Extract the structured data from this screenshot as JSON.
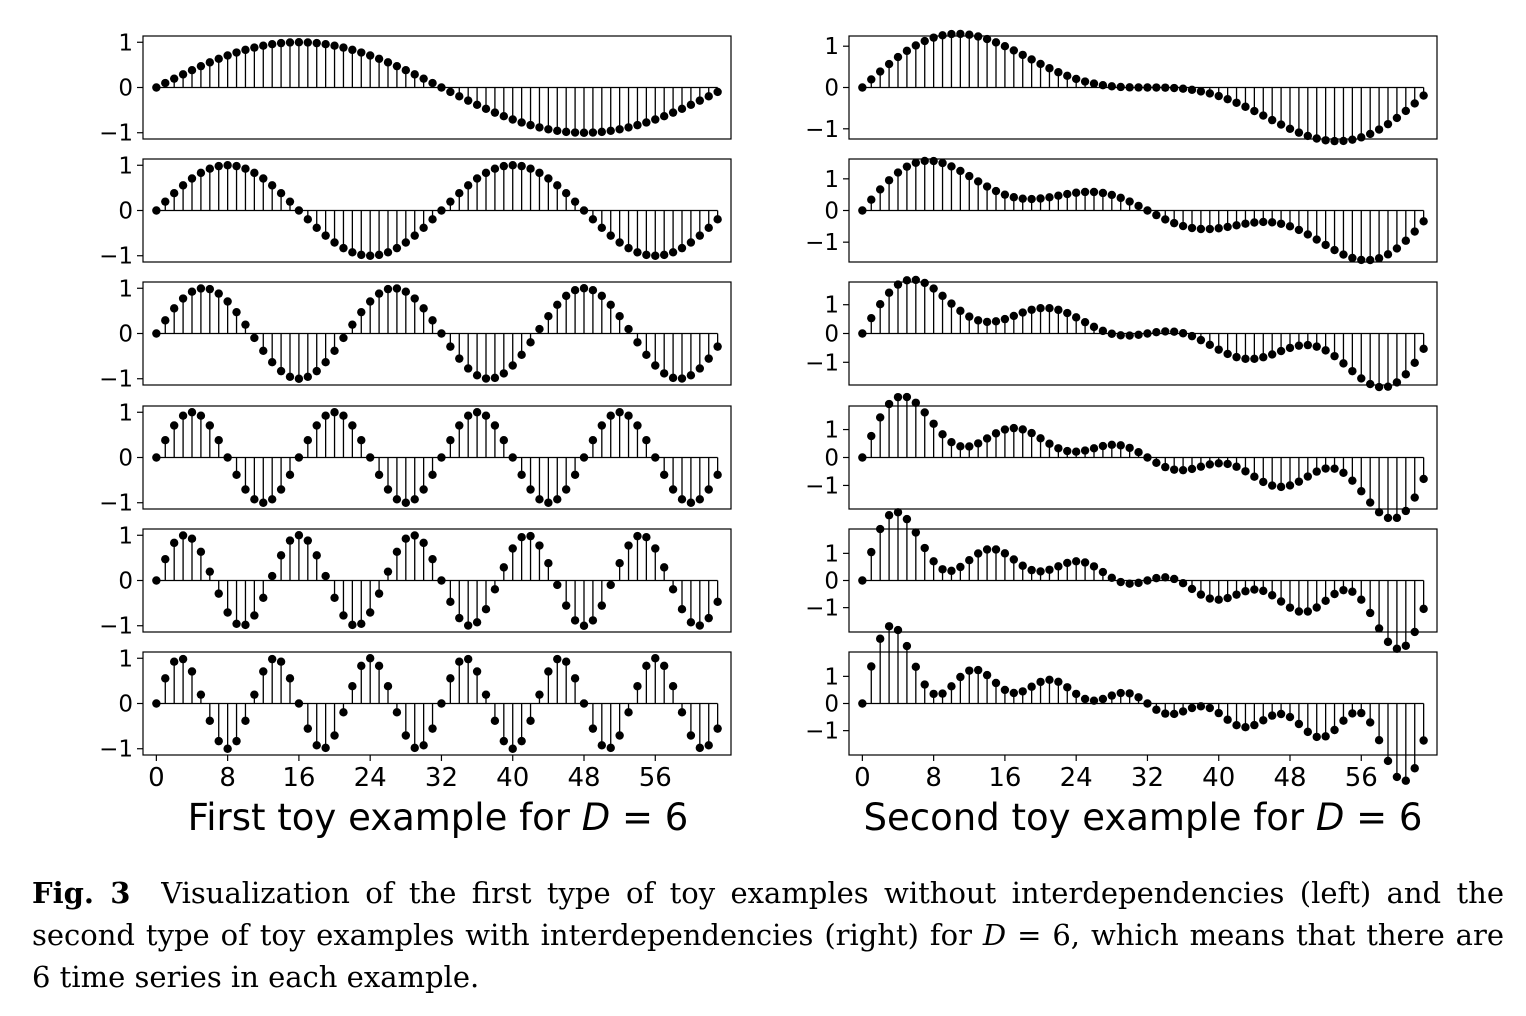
{
  "figure": {
    "caption": {
      "label": "Fig. 3",
      "pre": "Visualization of the first type of toy examples without interdependencies (left) and the second type of toy examples with interdependencies (right) for ",
      "var": "D",
      "post": " = 6, which means that there are 6 time series in each example."
    }
  },
  "chart_data": [
    {
      "type": "stem",
      "title": "First toy example for D = 6",
      "x": "0 to 63",
      "xticks": [
        "0",
        "8",
        "16",
        "24",
        "32",
        "40",
        "48",
        "56"
      ],
      "rows": [
        {
          "series": "sin(2*pi*1*t/64)",
          "ylim": [
            -1.05,
            1.05
          ],
          "yticks": [
            "1",
            "0",
            "−1"
          ],
          "ytick_values": [
            1,
            0,
            -1
          ]
        },
        {
          "series": "sin(2*pi*2*t/64)",
          "ylim": [
            -1.05,
            1.05
          ],
          "yticks": [
            "1",
            "0",
            "−1"
          ],
          "ytick_values": [
            1,
            0,
            -1
          ]
        },
        {
          "series": "sin(2*pi*3*t/64)",
          "ylim": [
            -1.05,
            1.05
          ],
          "yticks": [
            "1",
            "0",
            "−1"
          ],
          "ytick_values": [
            1,
            0,
            -1
          ]
        },
        {
          "series": "sin(2*pi*4*t/64)",
          "ylim": [
            -1.05,
            1.05
          ],
          "yticks": [
            "1",
            "0",
            "−1"
          ],
          "ytick_values": [
            1,
            0,
            -1
          ]
        },
        {
          "series": "sin(2*pi*5*t/64)",
          "ylim": [
            -1.05,
            1.05
          ],
          "yticks": [
            "1",
            "0",
            "−1"
          ],
          "ytick_values": [
            1,
            0,
            -1
          ]
        },
        {
          "series": "sin(2*pi*6*t/64)",
          "ylim": [
            -1.05,
            1.05
          ],
          "yticks": [
            "1",
            "0",
            "−1"
          ],
          "ytick_values": [
            1,
            0,
            -1
          ]
        }
      ]
    },
    {
      "type": "stem",
      "title": "Second toy example for D = 6",
      "x": "0 to 63",
      "xticks": [
        "0",
        "8",
        "16",
        "24",
        "32",
        "40",
        "48",
        "56"
      ],
      "rows": [
        {
          "series": "sum of sines k=1..2",
          "ylim": [
            -1.15,
            1.15
          ],
          "yticks": [
            "1",
            "0",
            "−1"
          ],
          "ytick_values": [
            1,
            0,
            -1
          ]
        },
        {
          "series": "sum of sines k=1..3",
          "ylim": [
            -1.5,
            1.5
          ],
          "yticks": [
            "1",
            "0",
            "−1"
          ],
          "ytick_values": [
            1,
            0,
            -1
          ]
        },
        {
          "series": "sum of sines k=1..4",
          "ylim": [
            -1.65,
            1.65
          ],
          "yticks": [
            "1",
            "0",
            "−1"
          ],
          "ytick_values": [
            1,
            0,
            -1
          ]
        },
        {
          "series": "sum of sines k=1..5",
          "ylim": [
            -1.7,
            1.7
          ],
          "yticks": [
            "1",
            "0",
            "−1"
          ],
          "ytick_values": [
            1,
            0,
            -1
          ]
        },
        {
          "series": "sum of sines k=1..6",
          "ylim": [
            -1.75,
            1.75
          ],
          "yticks": [
            "1",
            "0",
            "−1"
          ],
          "ytick_values": [
            1,
            0,
            -1
          ]
        },
        {
          "series": "sum of sines k=1..7",
          "ylim": [
            -1.75,
            1.75
          ],
          "yticks": [
            "1",
            "0",
            "−1"
          ],
          "ytick_values": [
            1,
            0,
            -1
          ]
        }
      ]
    }
  ],
  "panel_titles": {
    "left": {
      "pre": "First toy example for ",
      "var": "D",
      "post": " = 6"
    },
    "right": {
      "pre": "Second toy example for ",
      "var": "D",
      "post": " = 6"
    }
  }
}
